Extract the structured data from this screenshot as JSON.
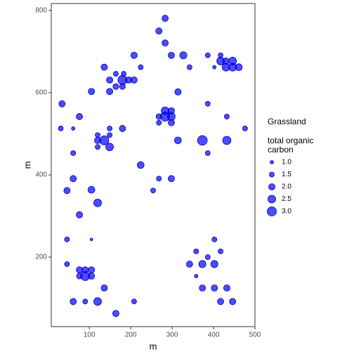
{
  "chart_data": {
    "type": "scatter",
    "caption": "Grassland",
    "legend_title": "total organic carbon",
    "x_label": "m",
    "y_label": "m",
    "color": "#0000ff",
    "xlim": [
      8,
      500
    ],
    "ylim": [
      31,
      817
    ],
    "xticks": [
      100,
      200,
      300,
      400,
      500
    ],
    "yticks": [
      200,
      400,
      600,
      800
    ],
    "size_legend": [
      {
        "value": 1.0,
        "label": "1.0"
      },
      {
        "value": 1.5,
        "label": "1.5"
      },
      {
        "value": 2.0,
        "label": "2.0"
      },
      {
        "value": 2.5,
        "label": "2.5"
      },
      {
        "value": 3.0,
        "label": "3.0"
      }
    ],
    "series": [
      {
        "name": "total organic carbon",
        "x": [
          268,
          283,
          283,
          298,
          327,
          342,
          208,
          224,
          136,
          164,
          183,
          149,
          180,
          195,
          164,
          180,
          208,
          105,
          149,
          314,
          386,
          417,
          402,
          417,
          430,
          446,
          446,
          461,
          430,
          386,
          34,
          31,
          61,
          76,
          149,
          180,
          120,
          120,
          136,
          149,
          149,
          120,
          268,
          283,
          298,
          283,
          298,
          268,
          298,
          314,
          373,
          432,
          386,
          432,
          476,
          61,
          224,
          61,
          268,
          298,
          254,
          46,
          105,
          120,
          76,
          46,
          105,
          402,
          358,
          417,
          386,
          46,
          342,
          373,
          402,
          358,
          76,
          90,
          105,
          76,
          90,
          105,
          136,
          373,
          402,
          432,
          61,
          90,
          120,
          208,
          164,
          417,
          446
        ],
        "values": [
          750,
          781,
          721,
          691,
          691,
          662,
          691,
          662,
          662,
          646,
          646,
          631,
          631,
          631,
          615,
          615,
          631,
          603,
          603,
          602,
          691,
          691,
          662,
          677,
          662,
          677,
          662,
          662,
          677,
          573,
          573,
          513,
          513,
          542,
          513,
          513,
          497,
          484,
          484,
          468,
          497,
          468,
          542,
          556,
          556,
          542,
          542,
          527,
          527,
          484,
          484,
          484,
          453,
          542,
          513,
          453,
          424,
          391,
          391,
          391,
          362,
          362,
          364,
          332,
          303,
          243,
          243,
          243,
          214,
          214,
          200,
          183,
          183,
          183,
          183,
          154,
          169,
          169,
          169,
          154,
          154,
          154,
          125,
          125,
          125,
          125,
          92,
          92,
          92,
          92,
          63,
          92,
          92
        ],
        "sizes": [
          2.0,
          2.0,
          2.0,
          2.0,
          2.3,
          1.5,
          2.0,
          1.5,
          2.0,
          1.5,
          1.5,
          2.0,
          3.0,
          2.0,
          1.8,
          1.8,
          2.0,
          2.0,
          2.0,
          2.0,
          1.5,
          1.5,
          1.0,
          2.5,
          2.5,
          2.5,
          2.5,
          2.2,
          2.0,
          1.5,
          2.0,
          1.5,
          1.0,
          2.0,
          1.5,
          2.0,
          1.5,
          2.0,
          3.0,
          2.5,
          1.5,
          1.5,
          1.8,
          2.5,
          2.0,
          3.0,
          2.5,
          1.5,
          2.0,
          2.2,
          3.2,
          2.7,
          1.5,
          1.5,
          1.5,
          1.5,
          2.2,
          2.0,
          1.5,
          2.0,
          1.5,
          2.0,
          2.2,
          2.5,
          2.0,
          1.5,
          0.7,
          1.5,
          1.5,
          1.5,
          1.5,
          1.5,
          2.0,
          2.3,
          2.3,
          1.0,
          2.0,
          2.0,
          2.0,
          1.8,
          3.0,
          2.0,
          2.0,
          2.0,
          2.0,
          2.0,
          2.0,
          1.5,
          2.5,
          1.5,
          2.0,
          2.0,
          2.0
        ]
      }
    ]
  }
}
